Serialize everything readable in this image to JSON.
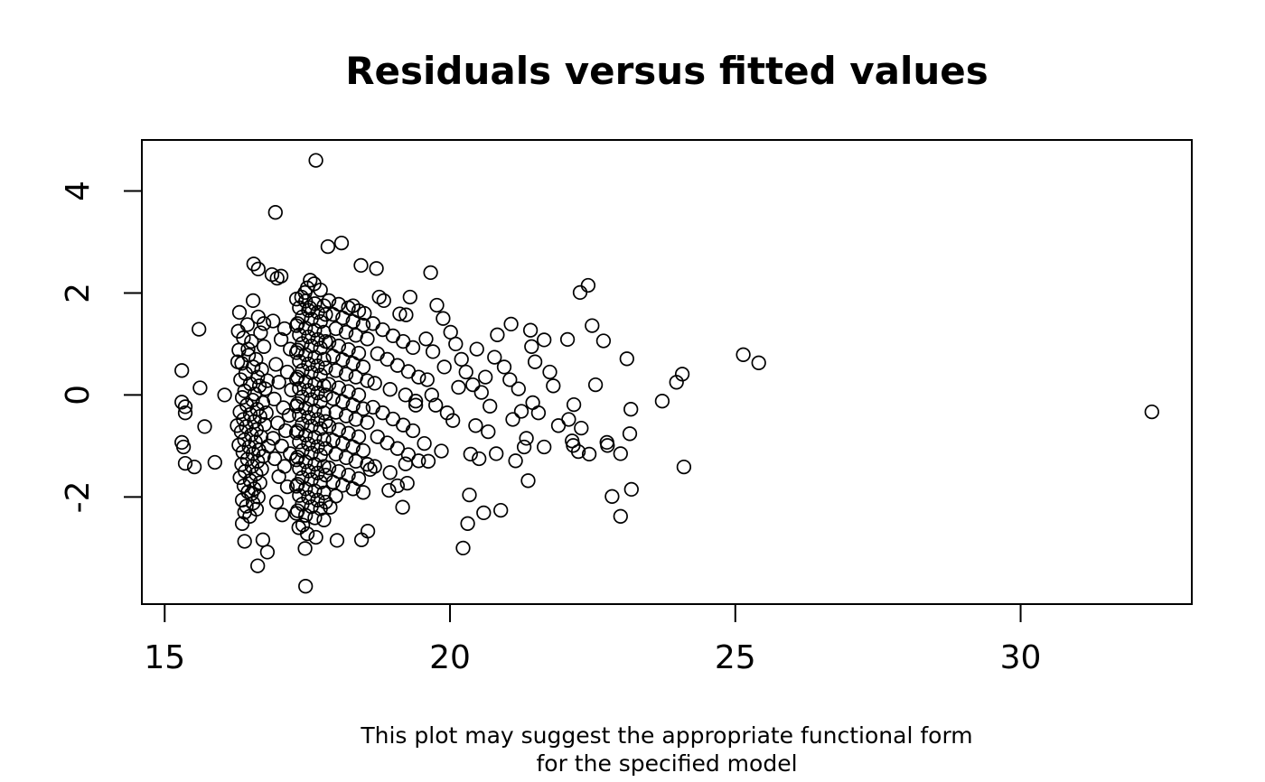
{
  "figure": {
    "title": "Residuals versus fitted values",
    "caption_line1": "This plot may suggest the appropriate functional form",
    "caption_line2": "for the specified model"
  },
  "chart_data": {
    "type": "scatter",
    "title": "Residuals versus fitted values",
    "subtitle": "This plot may suggest the appropriate functional form for the specified model",
    "xlabel": "",
    "ylabel": "",
    "xlim": [
      14.6,
      33.0
    ],
    "ylim": [
      -4.1,
      5.0
    ],
    "x_ticks": [
      15,
      20,
      25,
      30
    ],
    "y_ticks": [
      -2,
      0,
      2,
      4
    ],
    "grid": false,
    "legend_position": "none",
    "marker": "open-circle",
    "marker_color": "#000000",
    "points": [
      [
        15.3,
        0.48
      ],
      [
        15.3,
        -0.14
      ],
      [
        15.36,
        -0.23
      ],
      [
        15.36,
        -0.35
      ],
      [
        15.7,
        -0.62
      ],
      [
        15.3,
        -0.93
      ],
      [
        15.33,
        -1.02
      ],
      [
        15.36,
        -1.34
      ],
      [
        15.52,
        -1.41
      ],
      [
        15.88,
        -1.32
      ],
      [
        15.6,
        1.29
      ],
      [
        15.62,
        0.14
      ],
      [
        16.05,
        0.0
      ],
      [
        16.31,
        1.62
      ],
      [
        16.64,
        1.53
      ],
      [
        16.56,
        2.57
      ],
      [
        16.64,
        2.47
      ],
      [
        16.45,
        1.38
      ],
      [
        16.38,
        1.12
      ],
      [
        16.52,
        1.05
      ],
      [
        16.68,
        1.22
      ],
      [
        16.74,
        0.95
      ],
      [
        16.3,
        0.88
      ],
      [
        16.47,
        0.78
      ],
      [
        16.6,
        0.7
      ],
      [
        16.35,
        0.62
      ],
      [
        16.55,
        0.55
      ],
      [
        16.7,
        0.5
      ],
      [
        16.42,
        0.42
      ],
      [
        16.63,
        0.35
      ],
      [
        16.33,
        0.3
      ],
      [
        16.5,
        0.22
      ],
      [
        16.66,
        0.18
      ],
      [
        16.76,
        0.12
      ],
      [
        16.4,
        0.08
      ],
      [
        16.58,
        0.02
      ],
      [
        16.36,
        -0.05
      ],
      [
        16.54,
        -0.1
      ],
      [
        16.72,
        -0.15
      ],
      [
        16.44,
        -0.2
      ],
      [
        16.62,
        -0.28
      ],
      [
        16.32,
        -0.33
      ],
      [
        16.5,
        -0.38
      ],
      [
        16.67,
        -0.42
      ],
      [
        16.38,
        -0.48
      ],
      [
        16.57,
        -0.52
      ],
      [
        16.75,
        -0.58
      ],
      [
        16.43,
        -0.62
      ],
      [
        16.61,
        -0.68
      ],
      [
        16.34,
        -0.72
      ],
      [
        16.52,
        -0.78
      ],
      [
        16.69,
        -0.82
      ],
      [
        16.4,
        -0.88
      ],
      [
        16.59,
        -0.92
      ],
      [
        16.3,
        -0.98
      ],
      [
        16.48,
        -1.02
      ],
      [
        16.65,
        -1.08
      ],
      [
        16.37,
        -1.12
      ],
      [
        16.55,
        -1.15
      ],
      [
        16.73,
        -1.2
      ],
      [
        16.45,
        -1.26
      ],
      [
        16.63,
        -1.3
      ],
      [
        16.35,
        -1.36
      ],
      [
        16.53,
        -1.4
      ],
      [
        16.7,
        -1.45
      ],
      [
        16.41,
        -1.5
      ],
      [
        16.6,
        -1.55
      ],
      [
        16.32,
        -1.62
      ],
      [
        16.5,
        -1.68
      ],
      [
        16.67,
        -1.72
      ],
      [
        16.39,
        -1.78
      ],
      [
        16.57,
        -1.84
      ],
      [
        16.46,
        -1.9
      ],
      [
        16.52,
        -1.94
      ],
      [
        16.64,
        -2.0
      ],
      [
        16.36,
        -2.06
      ],
      [
        16.55,
        -2.12
      ],
      [
        16.43,
        -2.18
      ],
      [
        16.61,
        -2.24
      ],
      [
        16.4,
        -2.3
      ],
      [
        16.49,
        -2.38
      ],
      [
        16.36,
        -2.52
      ],
      [
        16.4,
        -2.87
      ],
      [
        16.72,
        -2.84
      ],
      [
        16.63,
        -3.35
      ],
      [
        16.8,
        -3.08
      ],
      [
        16.28,
        0.65
      ],
      [
        16.78,
        -0.35
      ],
      [
        16.8,
        0.28
      ],
      [
        16.27,
        -0.6
      ],
      [
        16.82,
        -1.0
      ],
      [
        16.29,
        1.25
      ],
      [
        16.46,
        0.9
      ],
      [
        16.74,
        1.4
      ],
      [
        16.55,
        1.85
      ],
      [
        16.94,
        3.58
      ],
      [
        16.88,
        2.36
      ],
      [
        16.97,
        2.29
      ],
      [
        17.04,
        2.33
      ],
      [
        17.04,
        1.09
      ],
      [
        16.9,
        1.45
      ],
      [
        17.1,
        1.3
      ],
      [
        17.2,
        0.9
      ],
      [
        16.95,
        0.6
      ],
      [
        17.15,
        0.45
      ],
      [
        17.0,
        0.25
      ],
      [
        17.22,
        0.1
      ],
      [
        16.92,
        -0.08
      ],
      [
        17.08,
        -0.25
      ],
      [
        17.18,
        -0.4
      ],
      [
        16.98,
        -0.55
      ],
      [
        17.12,
        -0.7
      ],
      [
        16.9,
        -0.85
      ],
      [
        17.05,
        -1.0
      ],
      [
        17.2,
        -1.15
      ],
      [
        16.93,
        -1.25
      ],
      [
        17.1,
        -1.4
      ],
      [
        17.0,
        -1.6
      ],
      [
        17.15,
        -1.8
      ],
      [
        16.96,
        -2.1
      ],
      [
        17.06,
        -2.35
      ],
      [
        17.65,
        4.6
      ],
      [
        17.55,
        2.25
      ],
      [
        17.62,
        2.18
      ],
      [
        17.5,
        2.1
      ],
      [
        17.46,
        2.01
      ],
      [
        17.73,
        2.06
      ],
      [
        17.4,
        1.92
      ],
      [
        17.54,
        1.71
      ],
      [
        17.47,
        -3.75
      ],
      [
        17.46,
        -3.01
      ],
      [
        17.65,
        -2.79
      ],
      [
        17.35,
        -2.6
      ],
      [
        17.5,
        -2.72
      ],
      [
        17.42,
        -2.55
      ],
      [
        17.31,
        1.88
      ],
      [
        17.47,
        1.84
      ],
      [
        17.63,
        1.79
      ],
      [
        17.79,
        1.75
      ],
      [
        17.36,
        1.71
      ],
      [
        17.52,
        1.66
      ],
      [
        17.68,
        1.62
      ],
      [
        17.82,
        1.58
      ],
      [
        17.41,
        1.53
      ],
      [
        17.57,
        1.49
      ],
      [
        17.73,
        1.44
      ],
      [
        17.33,
        1.4
      ],
      [
        17.31,
        1.36
      ],
      [
        17.47,
        1.31
      ],
      [
        17.63,
        1.27
      ],
      [
        17.79,
        1.23
      ],
      [
        17.36,
        1.18
      ],
      [
        17.52,
        1.14
      ],
      [
        17.68,
        1.09
      ],
      [
        17.82,
        1.05
      ],
      [
        17.41,
        1.01
      ],
      [
        17.57,
        0.96
      ],
      [
        17.73,
        0.92
      ],
      [
        17.33,
        0.88
      ],
      [
        17.31,
        0.83
      ],
      [
        17.47,
        0.79
      ],
      [
        17.63,
        0.74
      ],
      [
        17.79,
        0.7
      ],
      [
        17.36,
        0.66
      ],
      [
        17.52,
        0.61
      ],
      [
        17.68,
        0.57
      ],
      [
        17.82,
        0.53
      ],
      [
        17.41,
        0.48
      ],
      [
        17.57,
        0.44
      ],
      [
        17.73,
        0.39
      ],
      [
        17.33,
        0.35
      ],
      [
        17.31,
        0.31
      ],
      [
        17.47,
        0.26
      ],
      [
        17.63,
        0.22
      ],
      [
        17.79,
        0.18
      ],
      [
        17.36,
        0.13
      ],
      [
        17.52,
        0.09
      ],
      [
        17.68,
        0.04
      ],
      [
        17.82,
        0.0
      ],
      [
        17.41,
        -0.04
      ],
      [
        17.57,
        -0.09
      ],
      [
        17.73,
        -0.13
      ],
      [
        17.33,
        -0.17
      ],
      [
        17.31,
        -0.22
      ],
      [
        17.47,
        -0.26
      ],
      [
        17.63,
        -0.31
      ],
      [
        17.79,
        -0.35
      ],
      [
        17.36,
        -0.39
      ],
      [
        17.52,
        -0.44
      ],
      [
        17.68,
        -0.48
      ],
      [
        17.82,
        -0.52
      ],
      [
        17.41,
        -0.57
      ],
      [
        17.57,
        -0.61
      ],
      [
        17.73,
        -0.66
      ],
      [
        17.33,
        -0.7
      ],
      [
        17.31,
        -0.74
      ],
      [
        17.47,
        -0.79
      ],
      [
        17.63,
        -0.83
      ],
      [
        17.79,
        -0.87
      ],
      [
        17.36,
        -0.92
      ],
      [
        17.52,
        -0.96
      ],
      [
        17.68,
        -1.01
      ],
      [
        17.82,
        -1.05
      ],
      [
        17.41,
        -1.09
      ],
      [
        17.57,
        -1.14
      ],
      [
        17.73,
        -1.18
      ],
      [
        17.33,
        -1.22
      ],
      [
        17.31,
        -1.27
      ],
      [
        17.47,
        -1.31
      ],
      [
        17.63,
        -1.36
      ],
      [
        17.79,
        -1.4
      ],
      [
        17.36,
        -1.44
      ],
      [
        17.52,
        -1.49
      ],
      [
        17.68,
        -1.53
      ],
      [
        17.82,
        -1.57
      ],
      [
        17.41,
        -1.62
      ],
      [
        17.57,
        -1.66
      ],
      [
        17.73,
        -1.71
      ],
      [
        17.33,
        -1.75
      ],
      [
        17.31,
        -1.79
      ],
      [
        17.47,
        -1.84
      ],
      [
        17.63,
        -1.88
      ],
      [
        17.79,
        -1.92
      ],
      [
        17.36,
        -1.97
      ],
      [
        17.52,
        -2.01
      ],
      [
        17.68,
        -2.06
      ],
      [
        17.82,
        -2.1
      ],
      [
        17.41,
        -2.14
      ],
      [
        17.57,
        -2.19
      ],
      [
        17.73,
        -2.23
      ],
      [
        17.33,
        -2.27
      ],
      [
        17.31,
        -2.32
      ],
      [
        17.47,
        -2.36
      ],
      [
        17.63,
        -2.41
      ],
      [
        17.79,
        -2.45
      ],
      [
        17.86,
        2.91
      ],
      [
        18.1,
        2.98
      ],
      [
        18.44,
        2.54
      ],
      [
        18.02,
        -2.85
      ],
      [
        18.45,
        -2.84
      ],
      [
        18.56,
        -2.67
      ],
      [
        17.9,
        -2.2
      ],
      [
        18.3,
        1.75
      ],
      [
        18.5,
        1.6
      ],
      [
        17.88,
        1.85
      ],
      [
        18.05,
        1.78
      ],
      [
        18.22,
        1.71
      ],
      [
        18.4,
        1.65
      ],
      [
        17.95,
        1.58
      ],
      [
        18.12,
        1.51
      ],
      [
        18.3,
        1.44
      ],
      [
        18.48,
        1.37
      ],
      [
        18.0,
        1.3
      ],
      [
        18.18,
        1.23
      ],
      [
        18.35,
        1.17
      ],
      [
        18.55,
        1.1
      ],
      [
        17.88,
        1.03
      ],
      [
        18.05,
        0.96
      ],
      [
        18.22,
        0.89
      ],
      [
        18.4,
        0.82
      ],
      [
        17.95,
        0.76
      ],
      [
        18.12,
        0.69
      ],
      [
        18.3,
        0.62
      ],
      [
        18.48,
        0.55
      ],
      [
        18.0,
        0.48
      ],
      [
        18.18,
        0.41
      ],
      [
        18.35,
        0.35
      ],
      [
        18.55,
        0.28
      ],
      [
        17.88,
        0.21
      ],
      [
        18.05,
        0.14
      ],
      [
        18.22,
        0.07
      ],
      [
        18.4,
        0.0
      ],
      [
        17.95,
        -0.07
      ],
      [
        18.12,
        -0.13
      ],
      [
        18.3,
        -0.2
      ],
      [
        18.48,
        -0.27
      ],
      [
        18.0,
        -0.34
      ],
      [
        18.18,
        -0.41
      ],
      [
        18.35,
        -0.48
      ],
      [
        18.55,
        -0.54
      ],
      [
        17.88,
        -0.61
      ],
      [
        18.05,
        -0.68
      ],
      [
        18.22,
        -0.75
      ],
      [
        18.4,
        -0.82
      ],
      [
        17.95,
        -0.89
      ],
      [
        18.12,
        -0.95
      ],
      [
        18.3,
        -1.02
      ],
      [
        18.48,
        -1.09
      ],
      [
        18.0,
        -1.16
      ],
      [
        18.18,
        -1.23
      ],
      [
        18.35,
        -1.3
      ],
      [
        18.55,
        -1.36
      ],
      [
        17.88,
        -1.43
      ],
      [
        18.05,
        -1.5
      ],
      [
        18.22,
        -1.57
      ],
      [
        18.4,
        -1.64
      ],
      [
        17.95,
        -1.71
      ],
      [
        18.12,
        -1.77
      ],
      [
        18.3,
        -1.84
      ],
      [
        18.48,
        -1.91
      ],
      [
        18.0,
        -1.98
      ],
      [
        18.6,
        -1.46
      ],
      [
        18.71,
        2.48
      ],
      [
        18.76,
        1.92
      ],
      [
        18.84,
        1.85
      ],
      [
        19.3,
        1.92
      ],
      [
        19.12,
        1.59
      ],
      [
        19.23,
        1.57
      ],
      [
        18.93,
        -1.87
      ],
      [
        19.08,
        -1.78
      ],
      [
        19.25,
        -1.73
      ],
      [
        19.17,
        -2.2
      ],
      [
        18.65,
        1.4
      ],
      [
        18.82,
        1.28
      ],
      [
        19.0,
        1.16
      ],
      [
        19.18,
        1.05
      ],
      [
        19.35,
        0.93
      ],
      [
        18.73,
        0.81
      ],
      [
        18.9,
        0.7
      ],
      [
        19.08,
        0.58
      ],
      [
        19.27,
        0.46
      ],
      [
        19.45,
        0.35
      ],
      [
        18.68,
        0.23
      ],
      [
        18.95,
        0.11
      ],
      [
        19.22,
        0.0
      ],
      [
        19.4,
        -0.12
      ],
      [
        18.65,
        -0.24
      ],
      [
        18.82,
        -0.35
      ],
      [
        19.0,
        -0.47
      ],
      [
        19.18,
        -0.59
      ],
      [
        19.35,
        -0.7
      ],
      [
        18.73,
        -0.82
      ],
      [
        18.9,
        -0.94
      ],
      [
        19.08,
        -1.05
      ],
      [
        19.27,
        -1.17
      ],
      [
        19.45,
        -1.29
      ],
      [
        18.68,
        -1.4
      ],
      [
        18.95,
        -1.52
      ],
      [
        19.22,
        -1.35
      ],
      [
        19.4,
        -0.2
      ],
      [
        19.66,
        2.4
      ],
      [
        19.77,
        1.76
      ],
      [
        19.88,
        1.5
      ],
      [
        20.01,
        1.23
      ],
      [
        20.36,
        -1.16
      ],
      [
        20.34,
        -1.96
      ],
      [
        20.31,
        -2.52
      ],
      [
        20.23,
        -3.0
      ],
      [
        19.6,
        0.3
      ],
      [
        19.75,
        -0.2
      ],
      [
        19.9,
        0.55
      ],
      [
        20.05,
        -0.5
      ],
      [
        20.15,
        0.15
      ],
      [
        19.55,
        -0.95
      ],
      [
        19.7,
        0.85
      ],
      [
        19.85,
        -1.1
      ],
      [
        20.2,
        0.7
      ],
      [
        19.95,
        -0.35
      ],
      [
        20.4,
        0.2
      ],
      [
        20.45,
        -0.6
      ],
      [
        19.58,
        1.1
      ],
      [
        20.1,
        1.0
      ],
      [
        20.28,
        0.45
      ],
      [
        19.62,
        -1.3
      ],
      [
        19.68,
        0.0
      ],
      [
        20.47,
        0.9
      ],
      [
        20.83,
        1.18
      ],
      [
        20.78,
        0.74
      ],
      [
        21.07,
        1.39
      ],
      [
        21.41,
        1.27
      ],
      [
        21.43,
        0.95
      ],
      [
        21.49,
        0.65
      ],
      [
        20.81,
        -1.15
      ],
      [
        21.15,
        -1.29
      ],
      [
        21.3,
        -1.02
      ],
      [
        21.34,
        -0.85
      ],
      [
        21.37,
        -1.68
      ],
      [
        20.59,
        -2.31
      ],
      [
        20.89,
        -2.26
      ],
      [
        20.51,
        -1.25
      ],
      [
        21.2,
        0.12
      ],
      [
        20.7,
        -0.22
      ],
      [
        21.1,
        -0.48
      ],
      [
        20.62,
        0.35
      ],
      [
        20.95,
        0.55
      ],
      [
        21.25,
        -0.32
      ],
      [
        20.67,
        -0.72
      ],
      [
        21.45,
        -0.15
      ],
      [
        20.55,
        0.05
      ],
      [
        21.05,
        0.3
      ],
      [
        21.65,
        1.08
      ],
      [
        22.06,
        1.09
      ],
      [
        22.28,
        2.01
      ],
      [
        22.42,
        2.15
      ],
      [
        22.49,
        1.36
      ],
      [
        22.69,
        1.06
      ],
      [
        23.1,
        0.71
      ],
      [
        23.97,
        0.25
      ],
      [
        24.07,
        0.41
      ],
      [
        23.72,
        -0.12
      ],
      [
        23.17,
        -0.28
      ],
      [
        22.17,
        -0.19
      ],
      [
        22.08,
        -0.48
      ],
      [
        23.15,
        -0.76
      ],
      [
        22.14,
        -0.9
      ],
      [
        22.75,
        -0.93
      ],
      [
        21.81,
        0.18
      ],
      [
        21.65,
        -1.02
      ],
      [
        22.16,
        -0.99
      ],
      [
        22.25,
        -1.11
      ],
      [
        22.44,
        -1.16
      ],
      [
        22.76,
        -0.99
      ],
      [
        22.99,
        -1.15
      ],
      [
        22.84,
        -1.99
      ],
      [
        23.18,
        -1.85
      ],
      [
        22.99,
        -2.38
      ],
      [
        24.1,
        -1.41
      ],
      [
        21.75,
        0.45
      ],
      [
        21.9,
        -0.6
      ],
      [
        22.55,
        0.2
      ],
      [
        21.55,
        -0.35
      ],
      [
        22.3,
        -0.65
      ],
      [
        25.14,
        0.79
      ],
      [
        25.41,
        0.63
      ],
      [
        32.3,
        -0.33
      ]
    ]
  }
}
